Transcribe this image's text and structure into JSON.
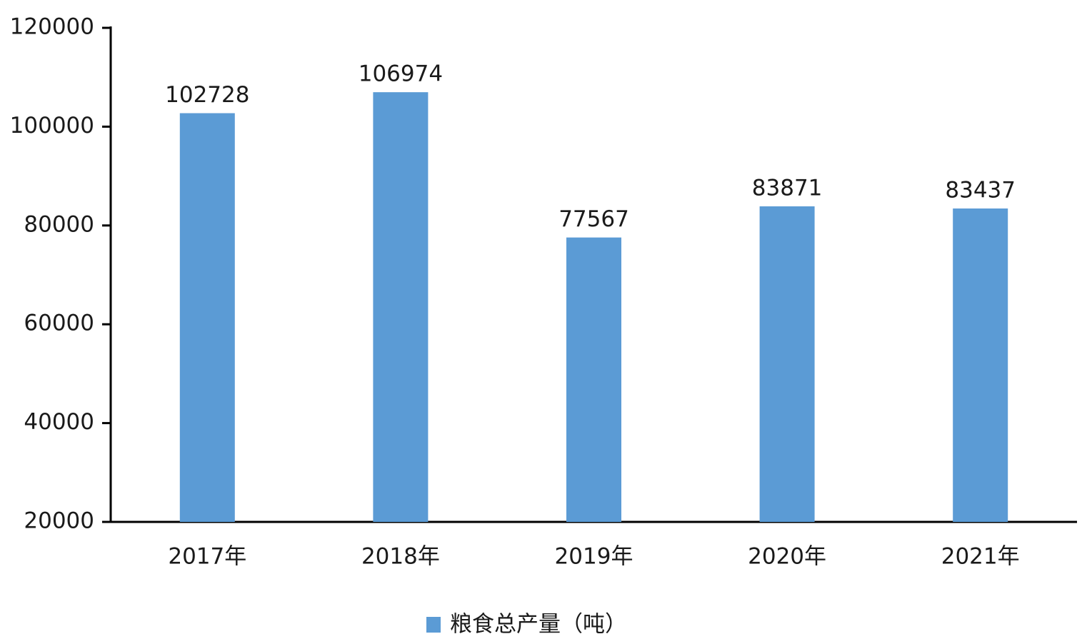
{
  "chart_data": {
    "type": "bar",
    "categories": [
      "2017年",
      "2018年",
      "2019年",
      "2020年",
      "2021年"
    ],
    "series": [
      {
        "name": "粮食总产量（吨）",
        "color": "#5b9bd5",
        "values": [
          102728,
          106974,
          77567,
          83871,
          83437
        ]
      }
    ],
    "ylim": [
      20000,
      120000
    ],
    "yticks": [
      20000,
      40000,
      60000,
      80000,
      100000,
      120000
    ],
    "grid": false,
    "legend": "bottom"
  }
}
